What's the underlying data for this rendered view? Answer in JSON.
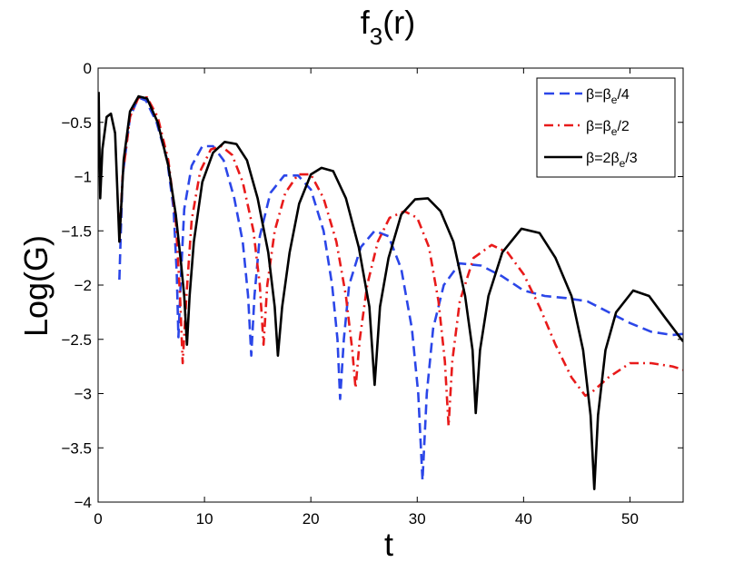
{
  "chart_data": {
    "type": "line",
    "title": {
      "main": "f",
      "sub": "3",
      "rest": "(r)"
    },
    "xlabel": "t",
    "ylabel": "Log(G)",
    "xlim": [
      0,
      55
    ],
    "ylim": [
      -4,
      0
    ],
    "xticks": [
      0,
      10,
      20,
      30,
      40,
      50
    ],
    "yticks": [
      0,
      -0.5,
      -1,
      -1.5,
      -2,
      -2.5,
      -3,
      -3.5,
      -4
    ],
    "xtick_labels": [
      "0",
      "10",
      "20",
      "30",
      "40",
      "50"
    ],
    "ytick_labels": [
      "0",
      "−0.5",
      "−1",
      "−1.5",
      "−2",
      "−2.5",
      "−3",
      "−3.5",
      "−4"
    ],
    "grid": false,
    "legend_position": "top-right",
    "series": [
      {
        "name": "β=βe/4",
        "legend": {
          "pre": "β=β",
          "sub": "e",
          "post": "/4"
        },
        "color": "#2b46e8",
        "dash": "dashed",
        "points": [
          [
            2.0,
            -1.95
          ],
          [
            2.3,
            -1.0
          ],
          [
            3.0,
            -0.45
          ],
          [
            3.8,
            -0.27
          ],
          [
            4.5,
            -0.3
          ],
          [
            5.5,
            -0.5
          ],
          [
            6.5,
            -0.85
          ],
          [
            7.1,
            -1.3
          ],
          [
            7.4,
            -1.9
          ],
          [
            7.55,
            -2.48
          ],
          [
            7.8,
            -1.9
          ],
          [
            8.1,
            -1.3
          ],
          [
            8.8,
            -0.9
          ],
          [
            9.8,
            -0.72
          ],
          [
            10.8,
            -0.72
          ],
          [
            11.8,
            -0.85
          ],
          [
            12.8,
            -1.2
          ],
          [
            13.6,
            -1.6
          ],
          [
            14.1,
            -2.1
          ],
          [
            14.4,
            -2.65
          ],
          [
            14.7,
            -2.1
          ],
          [
            15.2,
            -1.55
          ],
          [
            16.2,
            -1.15
          ],
          [
            17.5,
            -0.99
          ],
          [
            18.8,
            -0.99
          ],
          [
            20.0,
            -1.12
          ],
          [
            21.2,
            -1.5
          ],
          [
            22.0,
            -2.0
          ],
          [
            22.5,
            -2.5
          ],
          [
            22.75,
            -3.05
          ],
          [
            23.1,
            -2.5
          ],
          [
            23.6,
            -2.0
          ],
          [
            24.7,
            -1.65
          ],
          [
            26.0,
            -1.5
          ],
          [
            27.3,
            -1.55
          ],
          [
            28.5,
            -1.85
          ],
          [
            29.5,
            -2.4
          ],
          [
            30.1,
            -3.0
          ],
          [
            30.5,
            -3.8
          ],
          [
            30.9,
            -3.0
          ],
          [
            31.5,
            -2.4
          ],
          [
            32.5,
            -2.0
          ],
          [
            34.0,
            -1.8
          ],
          [
            36.0,
            -1.82
          ],
          [
            38.0,
            -1.92
          ],
          [
            40.0,
            -2.05
          ],
          [
            42.0,
            -2.1
          ],
          [
            44.0,
            -2.12
          ],
          [
            46.0,
            -2.15
          ],
          [
            48.0,
            -2.25
          ],
          [
            50.0,
            -2.35
          ],
          [
            52.0,
            -2.43
          ],
          [
            54.0,
            -2.46
          ],
          [
            55.0,
            -2.45
          ]
        ]
      },
      {
        "name": "β=βe/2",
        "legend": {
          "pre": "β=β",
          "sub": "e",
          "post": "/2"
        },
        "color": "#e81a1a",
        "dash": "dashdot",
        "points": [
          [
            2.0,
            -1.6
          ],
          [
            2.3,
            -1.0
          ],
          [
            3.0,
            -0.45
          ],
          [
            3.8,
            -0.27
          ],
          [
            4.6,
            -0.27
          ],
          [
            5.6,
            -0.45
          ],
          [
            6.6,
            -0.85
          ],
          [
            7.3,
            -1.4
          ],
          [
            7.7,
            -2.1
          ],
          [
            7.95,
            -2.72
          ],
          [
            8.3,
            -2.1
          ],
          [
            8.8,
            -1.4
          ],
          [
            9.6,
            -0.95
          ],
          [
            10.6,
            -0.75
          ],
          [
            11.6,
            -0.72
          ],
          [
            12.6,
            -0.8
          ],
          [
            13.6,
            -1.05
          ],
          [
            14.6,
            -1.5
          ],
          [
            15.2,
            -2.0
          ],
          [
            15.55,
            -2.55
          ],
          [
            15.9,
            -2.0
          ],
          [
            16.6,
            -1.5
          ],
          [
            17.6,
            -1.15
          ],
          [
            18.8,
            -0.98
          ],
          [
            20.0,
            -0.98
          ],
          [
            21.2,
            -1.2
          ],
          [
            22.4,
            -1.6
          ],
          [
            23.3,
            -2.1
          ],
          [
            23.9,
            -2.6
          ],
          [
            24.2,
            -2.95
          ],
          [
            24.6,
            -2.5
          ],
          [
            25.3,
            -2.0
          ],
          [
            26.3,
            -1.6
          ],
          [
            27.4,
            -1.38
          ],
          [
            28.8,
            -1.32
          ],
          [
            30.0,
            -1.38
          ],
          [
            31.1,
            -1.65
          ],
          [
            32.0,
            -2.15
          ],
          [
            32.6,
            -2.7
          ],
          [
            32.95,
            -3.3
          ],
          [
            33.3,
            -2.7
          ],
          [
            34.0,
            -2.15
          ],
          [
            35.3,
            -1.75
          ],
          [
            37.0,
            -1.63
          ],
          [
            38.5,
            -1.7
          ],
          [
            40.0,
            -1.9
          ],
          [
            41.5,
            -2.2
          ],
          [
            43.0,
            -2.55
          ],
          [
            44.5,
            -2.85
          ],
          [
            45.8,
            -3.02
          ],
          [
            46.5,
            -2.98
          ],
          [
            48.0,
            -2.85
          ],
          [
            50.0,
            -2.72
          ],
          [
            52.0,
            -2.72
          ],
          [
            54.0,
            -2.75
          ],
          [
            55.0,
            -2.78
          ]
        ]
      },
      {
        "name": "β=2βe/3",
        "legend": {
          "pre": "β=2β",
          "sub": "e",
          "post": "/3"
        },
        "color": "#000000",
        "dash": "solid",
        "points": [
          [
            0.05,
            -0.22
          ],
          [
            0.2,
            -1.2
          ],
          [
            0.4,
            -0.75
          ],
          [
            0.8,
            -0.45
          ],
          [
            1.2,
            -0.42
          ],
          [
            1.6,
            -0.6
          ],
          [
            2.0,
            -1.6
          ],
          [
            2.4,
            -0.85
          ],
          [
            3.0,
            -0.4
          ],
          [
            3.8,
            -0.26
          ],
          [
            4.6,
            -0.28
          ],
          [
            5.6,
            -0.5
          ],
          [
            6.6,
            -0.9
          ],
          [
            7.3,
            -1.35
          ],
          [
            7.8,
            -1.8
          ],
          [
            8.1,
            -2.1
          ],
          [
            8.35,
            -2.55
          ],
          [
            8.6,
            -2.1
          ],
          [
            9.0,
            -1.6
          ],
          [
            9.8,
            -1.05
          ],
          [
            10.8,
            -0.78
          ],
          [
            11.9,
            -0.68
          ],
          [
            13.0,
            -0.7
          ],
          [
            14.0,
            -0.85
          ],
          [
            15.0,
            -1.2
          ],
          [
            16.0,
            -1.7
          ],
          [
            16.6,
            -2.2
          ],
          [
            16.9,
            -2.65
          ],
          [
            17.3,
            -2.2
          ],
          [
            18.0,
            -1.7
          ],
          [
            18.9,
            -1.25
          ],
          [
            20.0,
            -0.98
          ],
          [
            21.0,
            -0.92
          ],
          [
            22.1,
            -0.95
          ],
          [
            23.3,
            -1.2
          ],
          [
            24.5,
            -1.65
          ],
          [
            25.5,
            -2.2
          ],
          [
            26.0,
            -2.92
          ],
          [
            26.5,
            -2.2
          ],
          [
            27.3,
            -1.75
          ],
          [
            28.5,
            -1.35
          ],
          [
            29.8,
            -1.21
          ],
          [
            31.0,
            -1.2
          ],
          [
            32.2,
            -1.32
          ],
          [
            33.4,
            -1.6
          ],
          [
            34.5,
            -2.1
          ],
          [
            35.2,
            -2.6
          ],
          [
            35.5,
            -3.18
          ],
          [
            35.9,
            -2.6
          ],
          [
            36.7,
            -2.1
          ],
          [
            38.0,
            -1.7
          ],
          [
            39.8,
            -1.48
          ],
          [
            41.5,
            -1.52
          ],
          [
            43.0,
            -1.75
          ],
          [
            44.5,
            -2.1
          ],
          [
            45.6,
            -2.6
          ],
          [
            46.3,
            -3.2
          ],
          [
            46.65,
            -3.88
          ],
          [
            47.0,
            -3.2
          ],
          [
            47.7,
            -2.6
          ],
          [
            48.7,
            -2.25
          ],
          [
            50.3,
            -2.05
          ],
          [
            51.8,
            -2.1
          ],
          [
            53.3,
            -2.3
          ],
          [
            55.0,
            -2.52
          ]
        ]
      }
    ]
  }
}
